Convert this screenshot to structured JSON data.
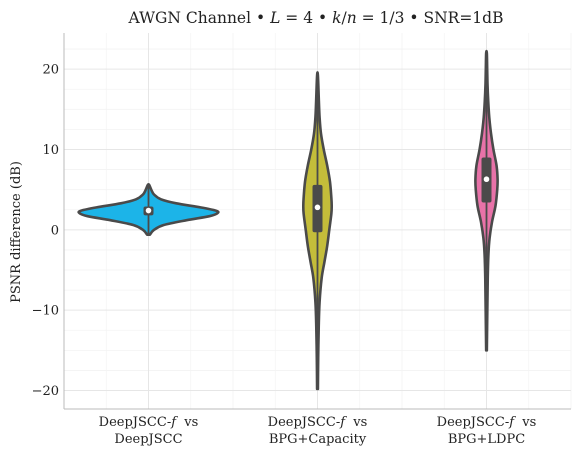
{
  "chart_data": {
    "type": "violin",
    "title": "AWGN Channel • L = 4 • k/n = 1/3 • SNR=1dB",
    "title_parts": {
      "prefix": "AWGN Channel • ",
      "L_symbol": "L",
      "L_eq": " = 4 • ",
      "k_symbol": "k",
      "slash": "/",
      "n_symbol": "n",
      "kn_eq": " = 1/3 • SNR=1dB"
    },
    "ylabel": "PSNR difference (dB)",
    "xlabel": "",
    "ylim": [
      -22.3,
      24.5
    ],
    "yticks": [
      -20,
      -10,
      0,
      10,
      20
    ],
    "ytick_labels": [
      "−20",
      "−10",
      "0",
      "10",
      "20"
    ],
    "grid": true,
    "categories": [
      {
        "label_line1_prefix": "DeepJSCC-",
        "label_line1_italic": "f",
        "label_line1_suffix": "  vs",
        "label_line2": "DeepJSCC",
        "color": "#1cb4e8",
        "min": -0.6,
        "max": 5.6,
        "q1": 1.8,
        "median": 2.4,
        "q3": 2.9,
        "density": [
          [
            -0.6,
            0.02
          ],
          [
            0.0,
            0.08
          ],
          [
            0.6,
            0.22
          ],
          [
            1.2,
            0.55
          ],
          [
            1.7,
            0.88
          ],
          [
            2.1,
            1.0
          ],
          [
            2.4,
            0.97
          ],
          [
            2.8,
            0.75
          ],
          [
            3.3,
            0.4
          ],
          [
            3.8,
            0.18
          ],
          [
            4.4,
            0.08
          ],
          [
            5.0,
            0.04
          ],
          [
            5.6,
            0.01
          ]
        ]
      },
      {
        "label_line1_prefix": "DeepJSCC-",
        "label_line1_italic": "f",
        "label_line1_suffix": "  vs",
        "label_line2": "BPG+Capacity",
        "color": "#c4bd3a",
        "min": -19.8,
        "max": 19.2,
        "q1": -0.3,
        "median": 2.8,
        "q3": 5.6,
        "density": [
          [
            -19.8,
            0.006
          ],
          [
            -16,
            0.01
          ],
          [
            -12,
            0.018
          ],
          [
            -9,
            0.03
          ],
          [
            -6,
            0.06
          ],
          [
            -4,
            0.1
          ],
          [
            -2,
            0.14
          ],
          [
            0,
            0.17
          ],
          [
            2,
            0.2
          ],
          [
            3,
            0.205
          ],
          [
            4,
            0.2
          ],
          [
            6,
            0.18
          ],
          [
            8,
            0.14
          ],
          [
            10,
            0.09
          ],
          [
            12,
            0.05
          ],
          [
            14,
            0.03
          ],
          [
            16,
            0.02
          ],
          [
            19.2,
            0.006
          ]
        ]
      },
      {
        "label_line1_prefix": "DeepJSCC-",
        "label_line1_italic": "f",
        "label_line1_suffix": "  vs",
        "label_line2": "BPG+LDPC",
        "color": "#e872a8",
        "min": -15.0,
        "max": 22.0,
        "q1": 3.4,
        "median": 6.3,
        "q3": 9.0,
        "density": [
          [
            -15,
            0.005
          ],
          [
            -10,
            0.012
          ],
          [
            -6,
            0.018
          ],
          [
            -3,
            0.028
          ],
          [
            -1,
            0.045
          ],
          [
            1,
            0.08
          ],
          [
            3,
            0.13
          ],
          [
            5,
            0.155
          ],
          [
            6.3,
            0.16
          ],
          [
            8,
            0.145
          ],
          [
            10,
            0.1
          ],
          [
            12,
            0.065
          ],
          [
            14,
            0.04
          ],
          [
            16,
            0.025
          ],
          [
            18,
            0.015
          ],
          [
            20,
            0.01
          ],
          [
            22,
            0.005
          ]
        ]
      }
    ],
    "style": {
      "outline": "#4a4a4a",
      "grid_major": "#e6e6e6",
      "grid_minor": "#f3f3f3",
      "spine": "#bbbbbb"
    }
  }
}
